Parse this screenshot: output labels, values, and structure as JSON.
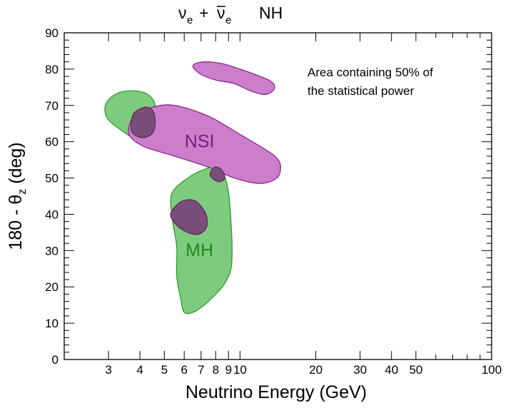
{
  "chart_data": {
    "type": "contour",
    "title": {
      "nu": "ν",
      "sub_e": "e",
      "plus": "+",
      "nu_bar": "ν",
      "sub_e2": "e",
      "hierarchy": "NH"
    },
    "xlabel": "Neutrino Energy (GeV)",
    "ylabel": {
      "prefix": "180 - θ",
      "sub": "z",
      "suffix": " (deg)"
    },
    "xscale": "log",
    "xlim": [
      2,
      100
    ],
    "ylim": [
      0,
      90
    ],
    "x_ticks": [
      {
        "value": 3,
        "label": "3"
      },
      {
        "value": 4,
        "label": "4"
      },
      {
        "value": 5,
        "label": "5"
      },
      {
        "value": 6,
        "label": "6"
      },
      {
        "value": 7,
        "label": "7"
      },
      {
        "value": 8,
        "label": "8"
      },
      {
        "value": 9,
        "label": "9"
      },
      {
        "value": 10,
        "label": "10"
      },
      {
        "value": 20,
        "label": "20"
      },
      {
        "value": 30,
        "label": "30"
      },
      {
        "value": 40,
        "label": "40"
      },
      {
        "value": 50,
        "label": "50"
      },
      {
        "value": 100,
        "label": "100"
      }
    ],
    "y_ticks": [
      0,
      10,
      20,
      30,
      40,
      50,
      60,
      70,
      80,
      90
    ],
    "annotation": [
      "Area containing 50% of",
      "the statistical power"
    ],
    "colors": {
      "MH_fill": "#7dcb7d",
      "MH_stroke": "#2f9a2f",
      "MH_label": "#1f8a1f",
      "NSI_fill": "#cc7ecc",
      "NSI_stroke": "#8a2a8a",
      "NSI_label": "#7a1a7a"
    },
    "regions": [
      {
        "name": "MH",
        "label": "MH",
        "label_at": [
          6.9,
          28.5
        ],
        "contours": [
          [
            [
              2.9,
              69
            ],
            [
              3.0,
              71.5
            ],
            [
              3.3,
              73.5
            ],
            [
              3.8,
              74
            ],
            [
              4.3,
              73
            ],
            [
              4.6,
              70
            ],
            [
              4.5,
              65
            ],
            [
              4.2,
              62
            ],
            [
              3.8,
              61
            ],
            [
              3.4,
              63
            ],
            [
              3.0,
              66
            ]
          ],
          [
            [
              6.0,
              13
            ],
            [
              5.8,
              17
            ],
            [
              5.6,
              23
            ],
            [
              5.6,
              31
            ],
            [
              5.4,
              38
            ],
            [
              5.3,
              44
            ],
            [
              5.5,
              47
            ],
            [
              6.2,
              50
            ],
            [
              7.0,
              52
            ],
            [
              7.9,
              53
            ],
            [
              8.6,
              51
            ],
            [
              9.0,
              46
            ],
            [
              9.2,
              38
            ],
            [
              9.3,
              31
            ],
            [
              9.2,
              25
            ],
            [
              8.7,
              21
            ],
            [
              8.0,
              18
            ],
            [
              7.2,
              15
            ],
            [
              6.5,
              13
            ]
          ]
        ]
      },
      {
        "name": "NSI",
        "label": "NSI",
        "label_at": [
          6.9,
          58.5
        ],
        "contours": [
          [
            [
              3.6,
              63.5
            ],
            [
              3.8,
              67
            ],
            [
              4.5,
              69.5
            ],
            [
              5.5,
              70
            ],
            [
              7.5,
              67
            ],
            [
              10,
              62
            ],
            [
              12.5,
              58
            ],
            [
              14,
              55.5
            ],
            [
              14.5,
              53
            ],
            [
              14,
              50
            ],
            [
              12,
              48.5
            ],
            [
              9.5,
              50
            ],
            [
              7.5,
              53
            ],
            [
              5.5,
              56
            ],
            [
              4.2,
              58.5
            ],
            [
              3.7,
              61
            ]
          ],
          [
            [
              6.5,
              81
            ],
            [
              6.9,
              78.8
            ],
            [
              8.0,
              77
            ],
            [
              9.5,
              76
            ],
            [
              11,
              74
            ],
            [
              12.5,
              73
            ],
            [
              13.5,
              74
            ],
            [
              13.7,
              75.5
            ],
            [
              13,
              77
            ],
            [
              11.5,
              78.5
            ],
            [
              10,
              80
            ],
            [
              8.5,
              81.5
            ],
            [
              7.2,
              82
            ]
          ],
          [
            [
              5.3,
              40
            ],
            [
              5.6,
              37
            ],
            [
              6.2,
              35
            ],
            [
              6.8,
              34.5
            ],
            [
              7.3,
              36
            ],
            [
              7.4,
              38.5
            ],
            [
              7.2,
              41
            ],
            [
              6.7,
              43.5
            ],
            [
              6.2,
              44
            ],
            [
              5.7,
              43
            ]
          ]
        ]
      }
    ],
    "overlaps": [
      [
        [
          3.7,
          65.5
        ],
        [
          3.8,
          68
        ],
        [
          4.2,
          69.5
        ],
        [
          4.5,
          68.5
        ],
        [
          4.6,
          65.5
        ],
        [
          4.5,
          62.5
        ],
        [
          4.2,
          61.2
        ],
        [
          3.9,
          61.5
        ],
        [
          3.7,
          63
        ]
      ],
      [
        [
          7.6,
          51
        ],
        [
          7.8,
          52.6
        ],
        [
          8.1,
          53
        ],
        [
          8.5,
          52
        ],
        [
          8.7,
          50
        ],
        [
          8.3,
          49
        ],
        [
          7.9,
          49.5
        ]
      ]
    ]
  }
}
